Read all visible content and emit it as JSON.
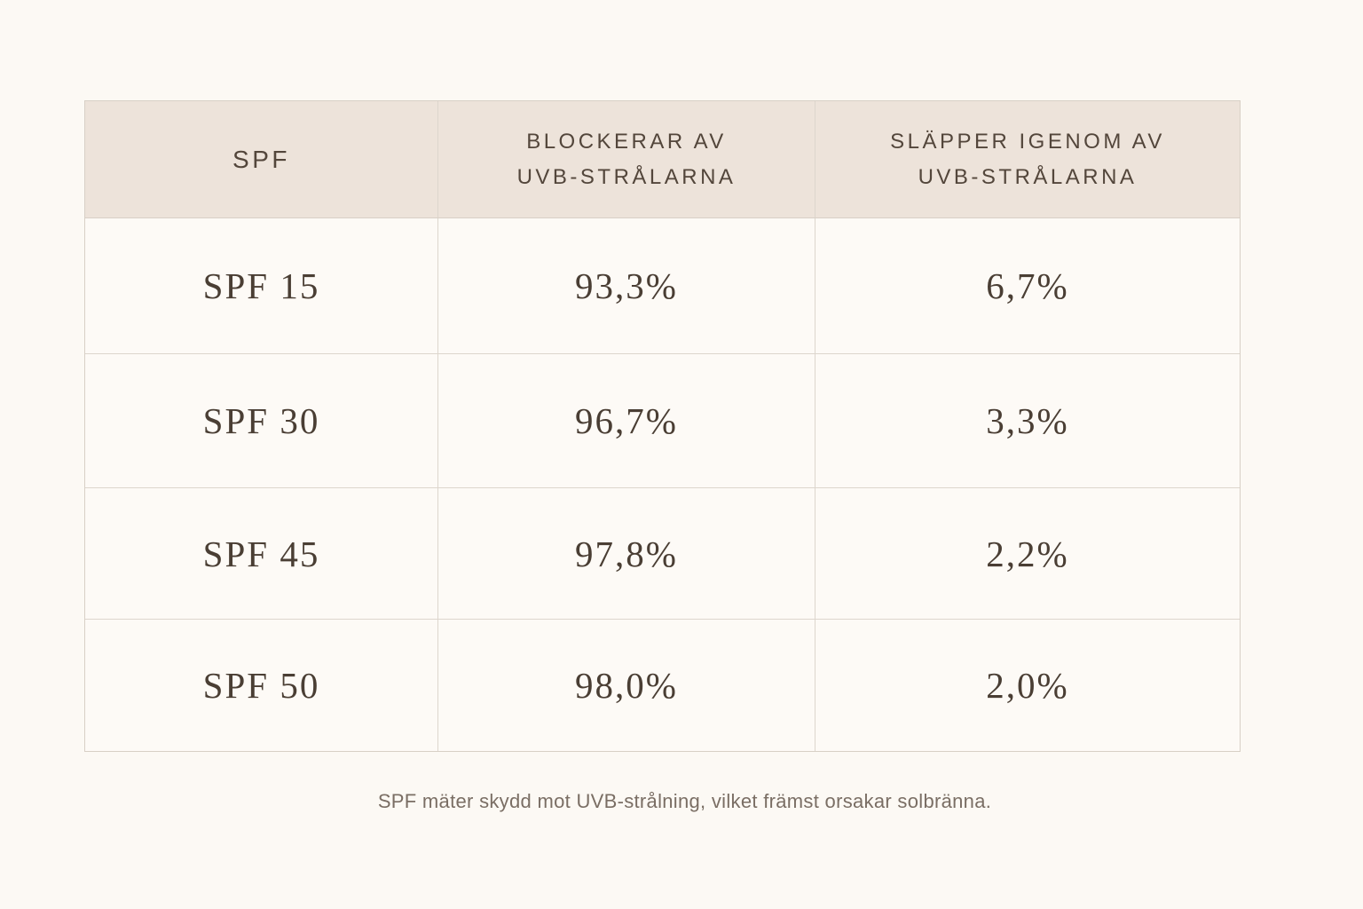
{
  "table": {
    "headers": [
      "SPF",
      "BLOCKERAR AV\nUVB-STRÅLARNA",
      "SLÄPPER IGENOM AV\nUVB-STRÅLARNA"
    ],
    "rows": [
      [
        "SPF 15",
        "93,3%",
        "6,7%"
      ],
      [
        "SPF 30",
        "96,7%",
        "3,3%"
      ],
      [
        "SPF 45",
        "97,8%",
        "2,2%"
      ],
      [
        "SPF 50",
        "98,0%",
        "2,0%"
      ]
    ]
  },
  "footnote": "SPF mäter skydd mot UVB-strålning, vilket främst orsakar solbränna."
}
